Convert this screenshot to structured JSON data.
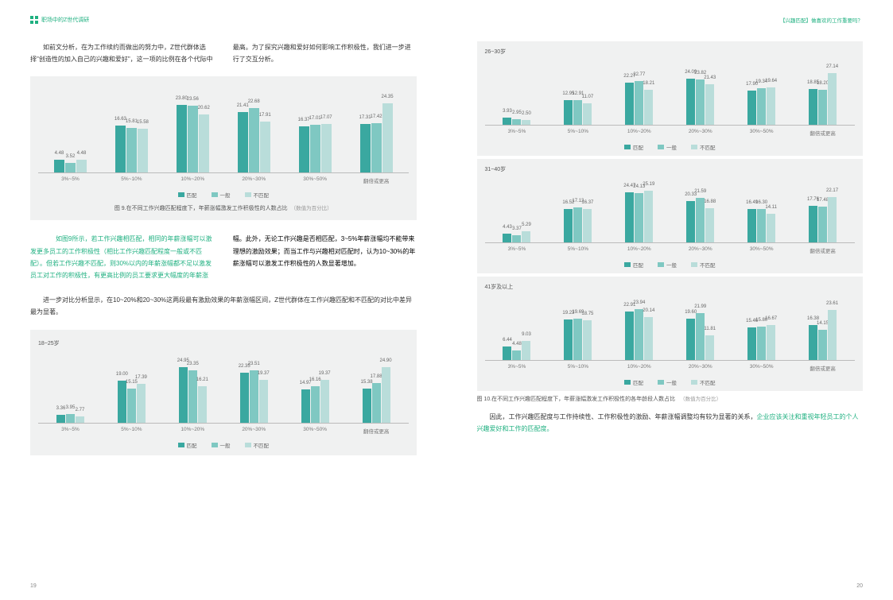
{
  "colors": {
    "series1": "#3aa8a0",
    "series2": "#7fc8c2",
    "series3": "#b9ddda",
    "bg_chart": "#f0f1f1",
    "green": "#1fb080",
    "text": "#333333"
  },
  "header_left": "职场中的Z世代调研",
  "header_right": "【兴趣匹配】做喜欢的工作重要吗？",
  "intro": "　　如前文分析，在为工作续约而做出的努力中，Z世代群体选择\"创造性的加入自己的兴趣和爱好\"，这一项的比例在各个代际中最高。为了探究兴趣和爱好如何影响工作积极性，我们进一步进行了交互分析。",
  "x_categories": [
    "3%~5%",
    "5%~10%",
    "10%~20%",
    "20%~30%",
    "30%~50%",
    "翻倍或更高"
  ],
  "legend_labels": [
    "匹配",
    "一般",
    "不匹配"
  ],
  "chart_main": {
    "caption": "图 9.在不同工作兴趣匹配程度下，年薪涨幅激发工作积极性的人数占比",
    "caption_sub": "（数值为百分比）",
    "max": 28,
    "data": [
      [
        4.48,
        3.52,
        4.48
      ],
      [
        16.63,
        15.81,
        15.58
      ],
      [
        23.8,
        23.56,
        20.62
      ],
      [
        21.41,
        22.68,
        17.91
      ],
      [
        16.37,
        17.01,
        17.07
      ],
      [
        17.31,
        17.42,
        24.35
      ]
    ]
  },
  "body_green": "如图9所示，若工作兴趣相匹配，相同的年薪涨幅可以激发更多员工的工作积极性（相比工作兴趣匹配程度一般或不匹配）。但若工作兴趣不匹配，则30%以内的年薪涨幅都不足以激发员工对工作的积极性，有更高比例的员工要求更大幅度的年薪涨",
  "body_black": "幅。此外，无论工作兴趣是否相匹配，3~5%年薪涨幅均不能带来理想的激励效果；而当工作与兴趣相对匹配时，认为10~30%的年薪涨幅可以激发工作积极性的人数显著增加。",
  "mid_para": "进一步对比分析显示，在10~20%和20~30%这两段最有激励效果的年薪涨幅区间，Z世代群体在工作兴趣匹配和不匹配的对比中差异最为显著。",
  "chart_A": {
    "age": "18~25岁",
    "max": 28,
    "data": [
      [
        3.36,
        3.95,
        2.77
      ],
      [
        19.0,
        15.15,
        17.39
      ],
      [
        24.95,
        23.35,
        16.21
      ],
      [
        22.35,
        23.51,
        19.37
      ],
      [
        14.97,
        16.16,
        19.37
      ],
      [
        15.38,
        17.88,
        24.9
      ]
    ]
  },
  "chart_B": {
    "age": "26~30岁",
    "max": 30,
    "data": [
      [
        3.93,
        2.95,
        2.5
      ],
      [
        12.95,
        12.91,
        11.07
      ],
      [
        22.27,
        22.77,
        18.21
      ],
      [
        24.09,
        23.82,
        21.43
      ],
      [
        17.9,
        19.34,
        19.64
      ],
      [
        18.85,
        18.2,
        27.14
      ]
    ]
  },
  "chart_C": {
    "age": "31~40岁",
    "max": 28,
    "data": [
      [
        4.43,
        3.37,
        5.29
      ],
      [
        16.52,
        17.13,
        16.37
      ],
      [
        24.47,
        24.13,
        25.19
      ],
      [
        20.33,
        21.59,
        16.88
      ],
      [
        16.49,
        16.3,
        14.11
      ],
      [
        17.76,
        17.48,
        22.17
      ]
    ]
  },
  "chart_D": {
    "age": "41岁及以上",
    "max": 27,
    "data": [
      [
        6.44,
        4.48,
        9.03
      ],
      [
        19.23,
        19.69,
        18.75
      ],
      [
        22.91,
        23.94,
        20.14
      ],
      [
        19.6,
        21.99,
        11.81
      ],
      [
        15.46,
        15.8,
        16.67
      ],
      [
        16.38,
        14.15,
        23.61
      ]
    ]
  },
  "caption_right": "图 10.在不同工作兴趣匹配程度下，年薪涨幅激发工作积极性的各年龄段人数占比",
  "caption_right_sub": "（数值为百分比）",
  "conclusion_black": "因此，工作兴趣匹配度与工作持续性、工作积极性的激励、年薪涨幅调整均有较为显著的关系，",
  "conclusion_green": "企业应该关注和重视年轻员工的个人兴趣爱好和工作的匹配度。",
  "page_left_num": "19",
  "page_right_num": "20"
}
